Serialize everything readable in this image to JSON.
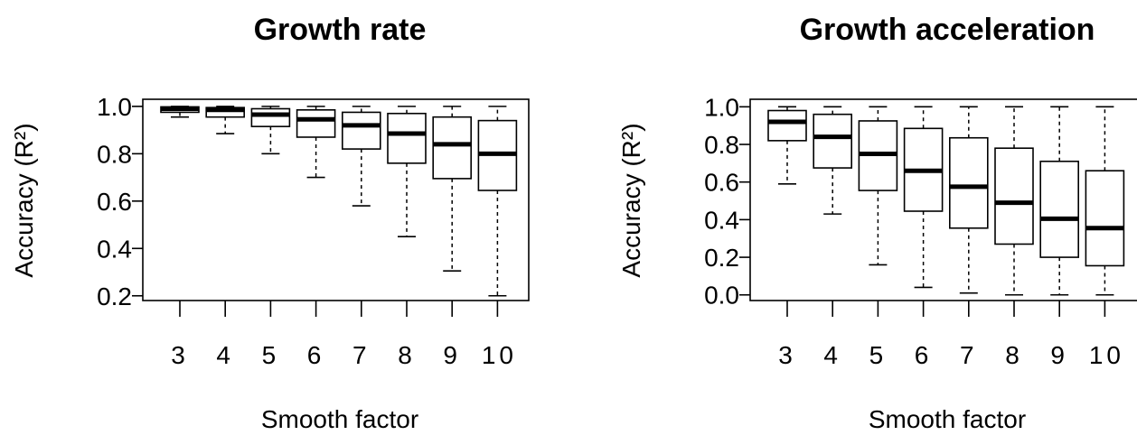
{
  "chart_data": [
    {
      "type": "box",
      "title": "Growth rate",
      "xlabel": "Smooth factor",
      "ylabel": "Accuracy (R²)",
      "ylim": [
        0.18,
        1.03
      ],
      "yticks": [
        0.2,
        0.4,
        0.6,
        0.8,
        1.0
      ],
      "ytick_labels": [
        "0.2",
        "0.4",
        "0.6",
        "0.8",
        "1.0"
      ],
      "categories": [
        "3",
        "4",
        "5",
        "6",
        "7",
        "8",
        "9",
        "10"
      ],
      "boxes": [
        {
          "whisker_low": 0.955,
          "q1": 0.975,
          "median": 0.99,
          "q3": 0.998,
          "whisker_high": 1.0
        },
        {
          "whisker_low": 0.885,
          "q1": 0.955,
          "median": 0.985,
          "q3": 0.995,
          "whisker_high": 1.0
        },
        {
          "whisker_low": 0.8,
          "q1": 0.915,
          "median": 0.965,
          "q3": 0.99,
          "whisker_high": 1.0
        },
        {
          "whisker_low": 0.7,
          "q1": 0.87,
          "median": 0.945,
          "q3": 0.985,
          "whisker_high": 1.0
        },
        {
          "whisker_low": 0.58,
          "q1": 0.82,
          "median": 0.92,
          "q3": 0.975,
          "whisker_high": 1.0
        },
        {
          "whisker_low": 0.45,
          "q1": 0.76,
          "median": 0.885,
          "q3": 0.97,
          "whisker_high": 1.0
        },
        {
          "whisker_low": 0.305,
          "q1": 0.695,
          "median": 0.84,
          "q3": 0.955,
          "whisker_high": 1.0
        },
        {
          "whisker_low": 0.2,
          "q1": 0.645,
          "median": 0.8,
          "q3": 0.94,
          "whisker_high": 1.0
        }
      ]
    },
    {
      "type": "box",
      "title": "Growth acceleration",
      "xlabel": "Smooth factor",
      "ylabel": "Accuracy (R²)",
      "ylim": [
        -0.03,
        1.04
      ],
      "yticks": [
        0.0,
        0.2,
        0.4,
        0.6,
        0.8,
        1.0
      ],
      "ytick_labels": [
        "0.0",
        "0.2",
        "0.4",
        "0.6",
        "0.8",
        "1.0"
      ],
      "categories": [
        "3",
        "4",
        "5",
        "6",
        "7",
        "8",
        "9",
        "10"
      ],
      "boxes": [
        {
          "whisker_low": 0.59,
          "q1": 0.82,
          "median": 0.92,
          "q3": 0.98,
          "whisker_high": 1.0
        },
        {
          "whisker_low": 0.43,
          "q1": 0.675,
          "median": 0.84,
          "q3": 0.96,
          "whisker_high": 1.0
        },
        {
          "whisker_low": 0.16,
          "q1": 0.555,
          "median": 0.75,
          "q3": 0.925,
          "whisker_high": 1.0
        },
        {
          "whisker_low": 0.04,
          "q1": 0.445,
          "median": 0.66,
          "q3": 0.885,
          "whisker_high": 1.0
        },
        {
          "whisker_low": 0.01,
          "q1": 0.355,
          "median": 0.575,
          "q3": 0.835,
          "whisker_high": 1.0
        },
        {
          "whisker_low": 0.0,
          "q1": 0.27,
          "median": 0.49,
          "q3": 0.78,
          "whisker_high": 1.0
        },
        {
          "whisker_low": 0.0,
          "q1": 0.2,
          "median": 0.405,
          "q3": 0.71,
          "whisker_high": 1.0
        },
        {
          "whisker_low": 0.0,
          "q1": 0.155,
          "median": 0.355,
          "q3": 0.66,
          "whisker_high": 1.0
        }
      ]
    }
  ]
}
